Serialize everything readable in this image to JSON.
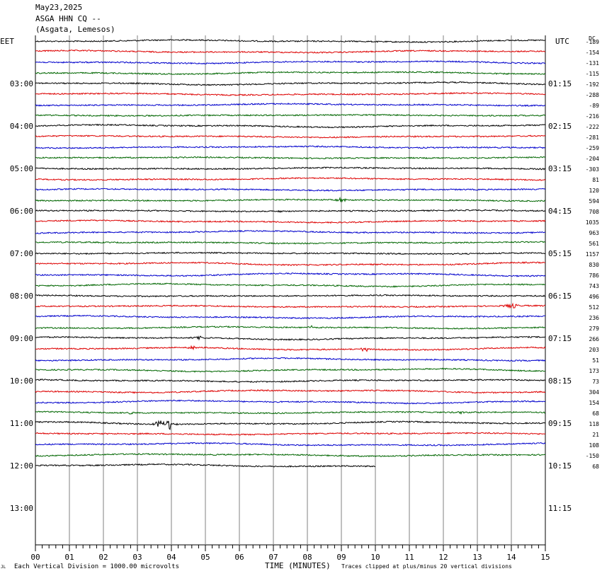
{
  "header": {
    "date": "May23,2025",
    "station": "ASGA HHN CQ --",
    "location": "(Asgata, Lemesos)"
  },
  "labels": {
    "left_tz": "EET",
    "right_tz": "UTC",
    "dc": "DC",
    "xlabel": "TIME (MINUTES)",
    "scale_note": "Each Vertical Division = 1000.00 microvolts",
    "clip_note": "Traces clipped at plus/minus 20 vertical divisions",
    "corner_mark": "JL"
  },
  "colors": {
    "trace_cycle": [
      "#000000",
      "#dd0000",
      "#0000cc",
      "#006600"
    ],
    "grid": "#808080"
  },
  "chart_data": {
    "type": "line",
    "title": "ASGA HHN CQ --",
    "subtitle": "(Asgata, Lemesos)",
    "xlabel": "TIME (MINUTES)",
    "xlim": [
      0,
      15
    ],
    "x_ticks": [
      "00",
      "01",
      "02",
      "03",
      "04",
      "05",
      "06",
      "07",
      "08",
      "09",
      "10",
      "11",
      "12",
      "13",
      "14",
      "15"
    ],
    "row_minutes": 15,
    "rows": 40,
    "left_hour_labels": [
      "03:00",
      "04:00",
      "05:00",
      "06:00",
      "07:00",
      "08:00",
      "09:00",
      "10:00",
      "11:00",
      "12:00",
      "13:00"
    ],
    "right_hour_labels": [
      "01:15",
      "02:15",
      "03:15",
      "04:15",
      "05:15",
      "06:15",
      "07:15",
      "08:15",
      "09:15",
      "10:15",
      "11:15"
    ],
    "dc_offsets": [
      -189,
      -154,
      -131,
      -115,
      -192,
      -288,
      -89,
      -216,
      -222,
      -281,
      -259,
      -204,
      -303,
      81,
      120,
      594,
      708,
      1035,
      963,
      561,
      1157,
      830,
      786,
      743,
      496,
      512,
      236,
      279,
      266,
      203,
      51,
      173,
      73,
      304,
      154,
      68,
      118,
      21,
      108,
      -150,
      68
    ],
    "trace_count": 41,
    "last_trace_end_minute": 10,
    "events": [
      {
        "trace": 15,
        "minute": 9.0,
        "amp": 4
      },
      {
        "trace": 16,
        "minute": 7.2,
        "amp": 2
      },
      {
        "trace": 20,
        "minute": 1.5,
        "amp": 2
      },
      {
        "trace": 25,
        "minute": 14.0,
        "amp": 9
      },
      {
        "trace": 27,
        "minute": 8.1,
        "amp": 3
      },
      {
        "trace": 28,
        "minute": 4.8,
        "amp": 3
      },
      {
        "trace": 29,
        "minute": 4.6,
        "amp": 3
      },
      {
        "trace": 29,
        "minute": 9.7,
        "amp": 4
      },
      {
        "trace": 35,
        "minute": 2.8,
        "amp": 3
      },
      {
        "trace": 35,
        "minute": 12.5,
        "amp": 3
      },
      {
        "trace": 36,
        "minute": 3.65,
        "amp": 11
      },
      {
        "trace": 36,
        "minute": 3.95,
        "amp": 9
      }
    ]
  }
}
